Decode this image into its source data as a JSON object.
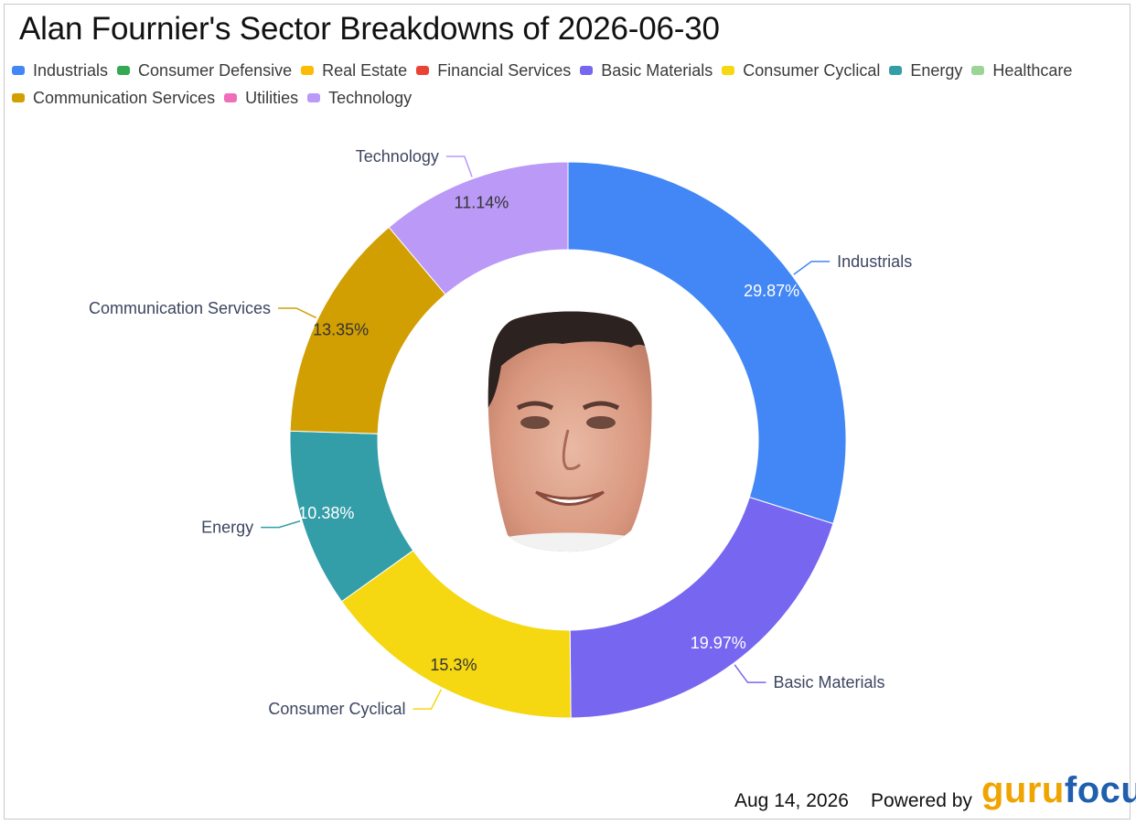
{
  "title": "Alan Fournier's Sector Breakdowns of 2026-06-30",
  "footer": {
    "date": "Aug 14, 2026",
    "powered_by": "Powered by",
    "logo_guru": "guru",
    "logo_focus": "focus"
  },
  "legend": [
    {
      "label": "Industrials",
      "color": "#4287f5"
    },
    {
      "label": "Consumer Defensive",
      "color": "#34a853"
    },
    {
      "label": "Real Estate",
      "color": "#fbbc05"
    },
    {
      "label": "Financial Services",
      "color": "#ea4335"
    },
    {
      "label": "Basic Materials",
      "color": "#7766f0"
    },
    {
      "label": "Consumer Cyclical",
      "color": "#f5d712"
    },
    {
      "label": "Energy",
      "color": "#349ea8"
    },
    {
      "label": "Healthcare",
      "color": "#9bd495"
    },
    {
      "label": "Communication Services",
      "color": "#d19f02"
    },
    {
      "label": "Utilities",
      "color": "#f06eb9"
    },
    {
      "label": "Technology",
      "color": "#bb99f7"
    }
  ],
  "chart_data": {
    "type": "pie",
    "variant": "donut",
    "title": "Alan Fournier's Sector Breakdowns of 2026-06-30",
    "legend_position": "top",
    "slices": [
      {
        "label": "Industrials",
        "value": 29.87,
        "value_label": "29.87%",
        "color": "#4287f5"
      },
      {
        "label": "Basic Materials",
        "value": 19.97,
        "value_label": "19.97%",
        "color": "#7766f0"
      },
      {
        "label": "Consumer Cyclical",
        "value": 15.3,
        "value_label": "15.3%",
        "color": "#f5d712"
      },
      {
        "label": "Energy",
        "value": 10.38,
        "value_label": "10.38%",
        "color": "#349ea8"
      },
      {
        "label": "Communication Services",
        "value": 13.35,
        "value_label": "13.35%",
        "color": "#d19f02"
      },
      {
        "label": "Technology",
        "value": 11.14,
        "value_label": "11.14%",
        "color": "#bb99f7"
      }
    ]
  }
}
